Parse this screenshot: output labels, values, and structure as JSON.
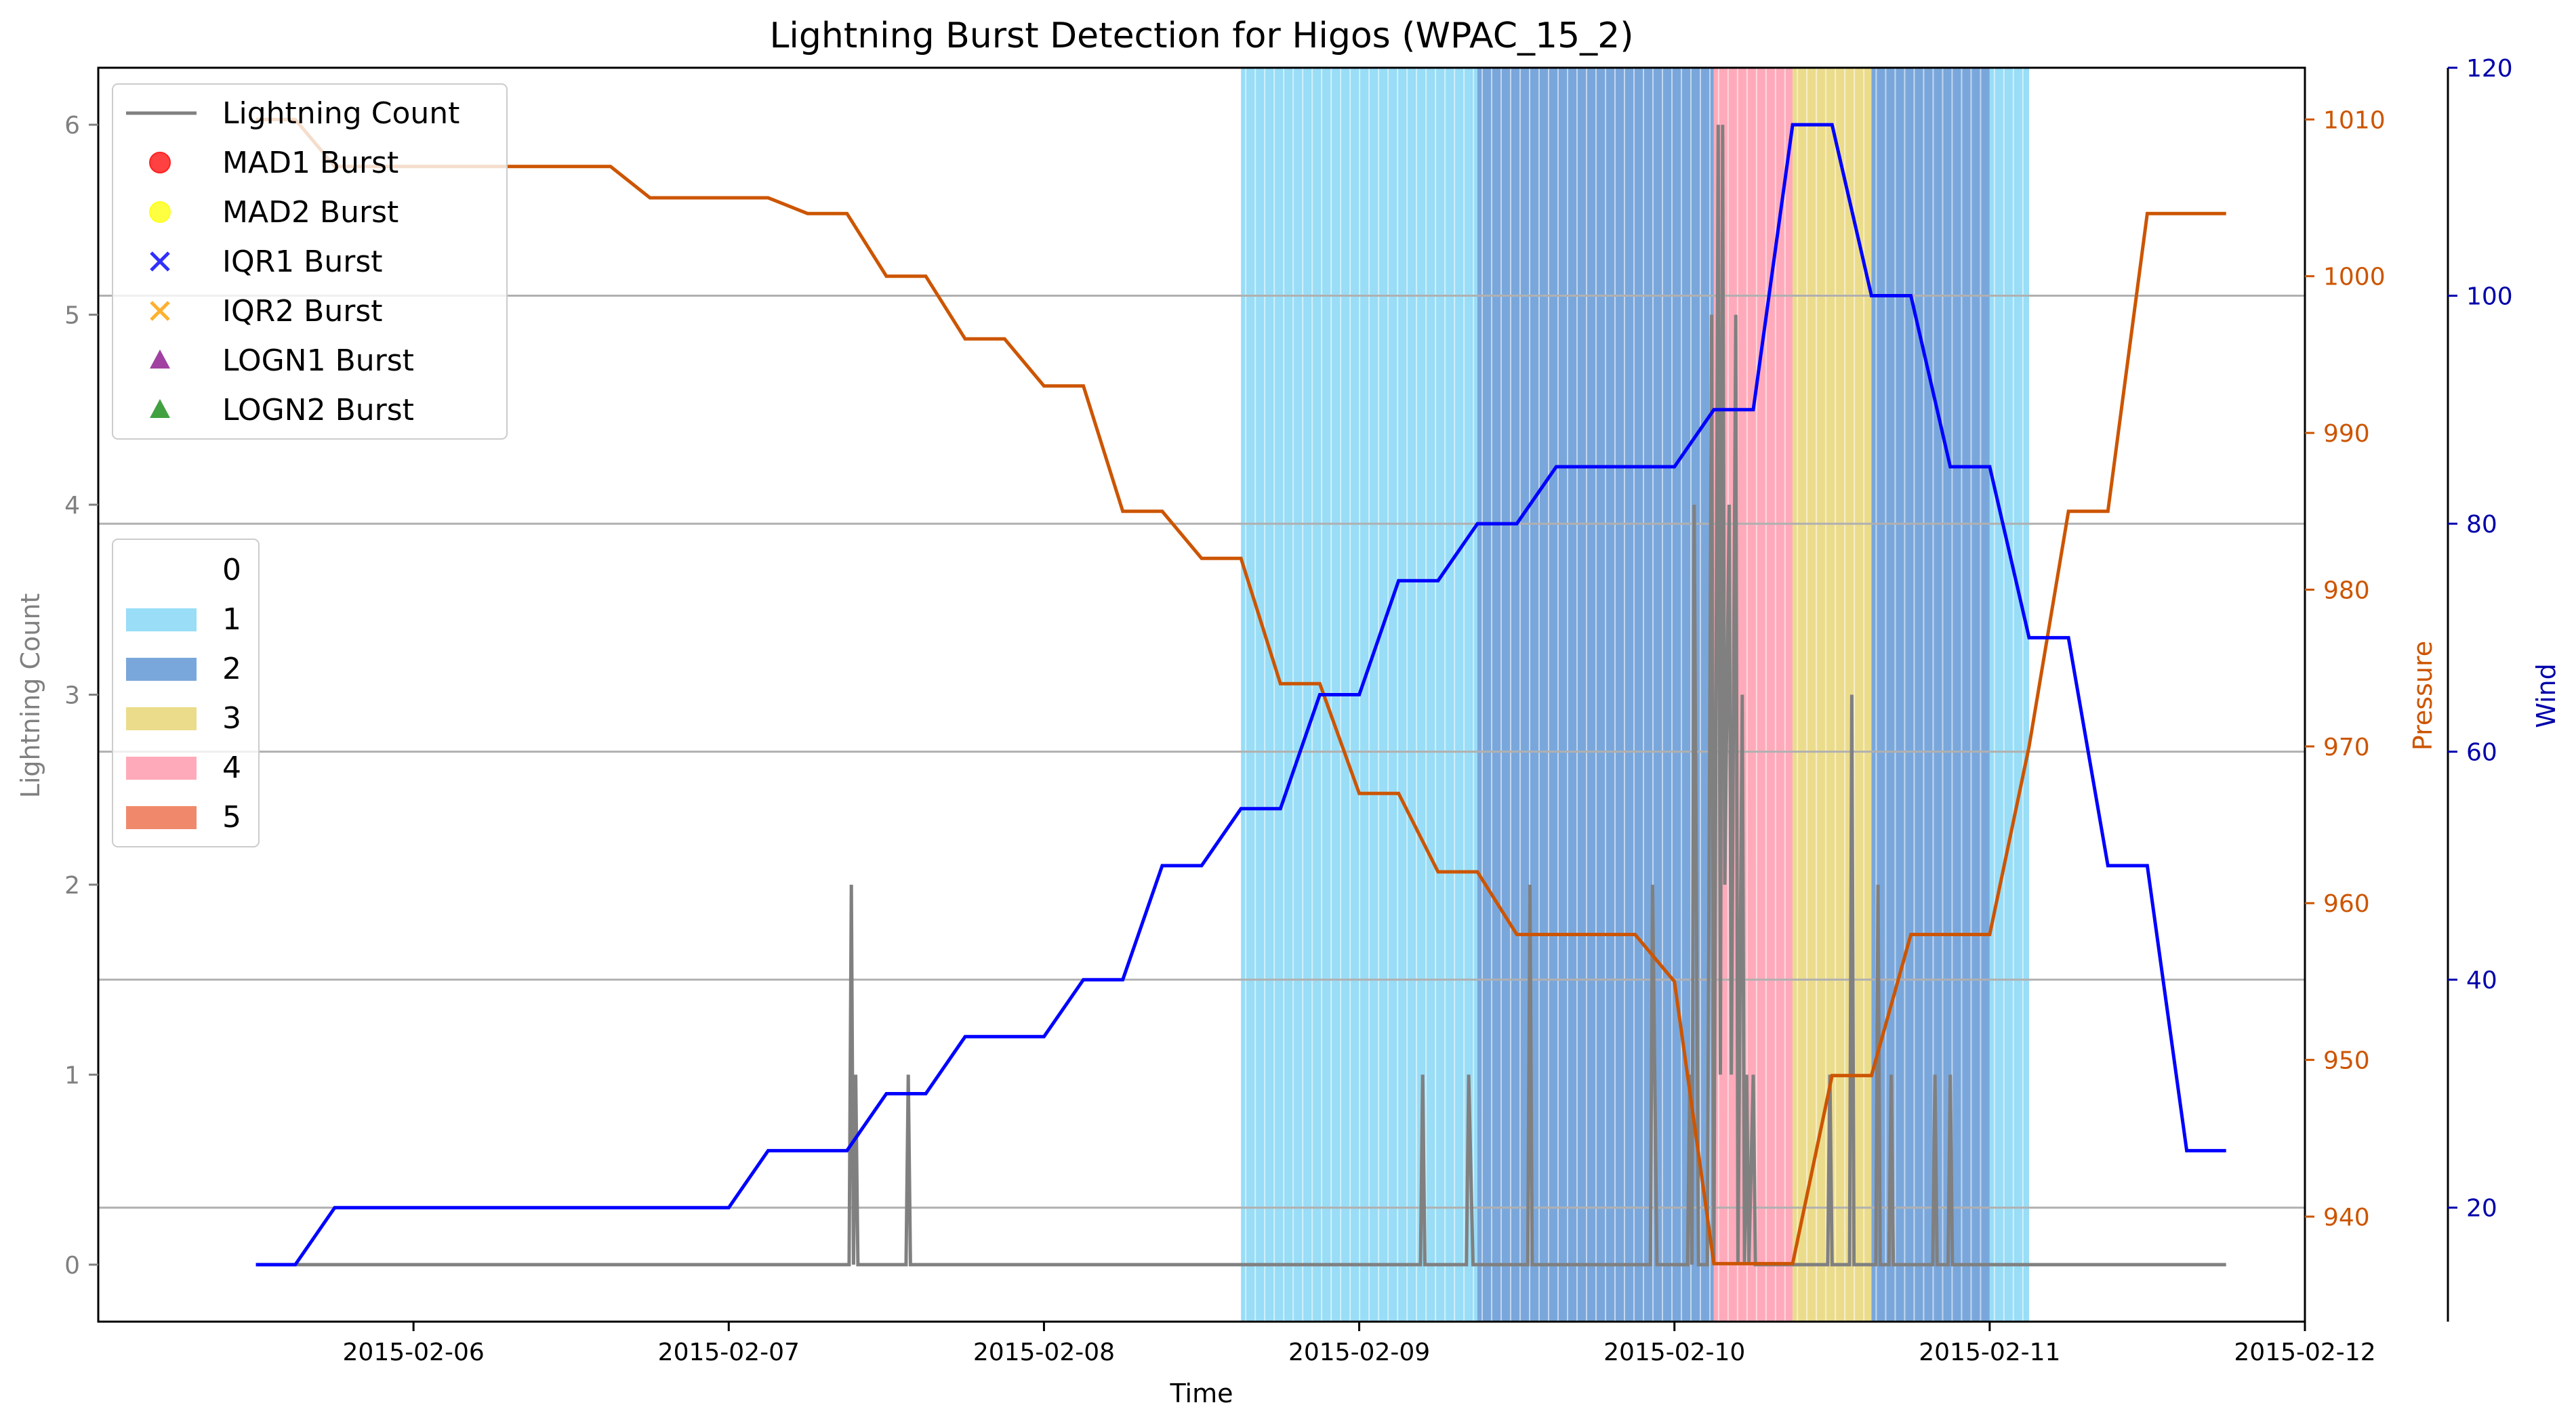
{
  "chart_data": {
    "type": "line",
    "title": "Lightning Burst Detection for Higos (WPAC_15_2)",
    "xlabel": "Time",
    "ylabel_left": "Lightning Count",
    "ylabel_pressure": "Pressure",
    "ylabel_wind": "Wind",
    "x_range": [
      "2015-02-05T00:00",
      "2015-02-12T00:00"
    ],
    "x_ticks": [
      "2015-02-06",
      "2015-02-07",
      "2015-02-08",
      "2015-02-09",
      "2015-02-10",
      "2015-02-11",
      "2015-02-12"
    ],
    "ylim_left": [
      -0.3,
      6.3
    ],
    "y_ticks_left": [
      "0",
      "1",
      "2",
      "3",
      "4",
      "5",
      "6"
    ],
    "ylim_pressure": [
      933.3,
      1013.3
    ],
    "y_ticks_pressure": [
      "940",
      "950",
      "960",
      "970",
      "980",
      "990",
      "1000",
      "1010"
    ],
    "ylim_wind": [
      10,
      120
    ],
    "y_ticks_wind": [
      "20",
      "40",
      "60",
      "80",
      "100",
      "120"
    ],
    "legend_series": [
      {
        "label": "Lightning Count",
        "marker": "line",
        "color": "#808080"
      },
      {
        "label": "MAD1 Burst",
        "marker": "circle",
        "color": "#ff2020"
      },
      {
        "label": "MAD2 Burst",
        "marker": "circle",
        "color": "#ffff20"
      },
      {
        "label": "IQR1 Burst",
        "marker": "x",
        "color": "#3030ff"
      },
      {
        "label": "IQR2 Burst",
        "marker": "x",
        "color": "#ffb030"
      },
      {
        "label": "LOGN1 Burst",
        "marker": "triangle",
        "color": "#902090"
      },
      {
        "label": "LOGN2 Burst",
        "marker": "triangle",
        "color": "#209020"
      }
    ],
    "category_legend": [
      {
        "label": "0",
        "color": "#ffffff"
      },
      {
        "label": "1",
        "color": "#99ddf7"
      },
      {
        "label": "2",
        "color": "#7aa7db"
      },
      {
        "label": "3",
        "color": "#ebdc8c"
      },
      {
        "label": "4",
        "color": "#ffaaba"
      },
      {
        "label": "5",
        "color": "#f0896c"
      }
    ],
    "category_spans": [
      {
        "category": 1,
        "start": "2015-02-08T15:00",
        "end": "2015-02-09T09:00"
      },
      {
        "category": 2,
        "start": "2015-02-09T09:00",
        "end": "2015-02-10T03:00"
      },
      {
        "category": 4,
        "start": "2015-02-10T03:00",
        "end": "2015-02-10T09:00"
      },
      {
        "category": 3,
        "start": "2015-02-10T09:00",
        "end": "2015-02-10T15:00"
      },
      {
        "category": 2,
        "start": "2015-02-10T15:00",
        "end": "2015-02-11T00:00"
      },
      {
        "category": 1,
        "start": "2015-02-11T00:00",
        "end": "2015-02-11T03:00"
      }
    ],
    "hgrid_wind_values": [
      20,
      40,
      60,
      80,
      100
    ],
    "series": [
      {
        "name": "Lightning Count",
        "color": "#808080",
        "points": [
          [
            "2015-02-05T12:00",
            0
          ],
          [
            "2015-02-07T09:10",
            0
          ],
          [
            "2015-02-07T09:20",
            2
          ],
          [
            "2015-02-07T09:30",
            0
          ],
          [
            "2015-02-07T09:40",
            1
          ],
          [
            "2015-02-07T09:50",
            0
          ],
          [
            "2015-02-07T13:30",
            0
          ],
          [
            "2015-02-07T13:40",
            1
          ],
          [
            "2015-02-07T13:50",
            0
          ],
          [
            "2015-02-09T04:40",
            0
          ],
          [
            "2015-02-09T04:50",
            1
          ],
          [
            "2015-02-09T05:00",
            0
          ],
          [
            "2015-02-09T08:10",
            0
          ],
          [
            "2015-02-09T08:20",
            1
          ],
          [
            "2015-02-09T08:40",
            0
          ],
          [
            "2015-02-09T12:50",
            0
          ],
          [
            "2015-02-09T13:00",
            2
          ],
          [
            "2015-02-09T13:10",
            0
          ],
          [
            "2015-02-09T22:10",
            0
          ],
          [
            "2015-02-09T22:20",
            2
          ],
          [
            "2015-02-09T22:40",
            0
          ],
          [
            "2015-02-10T01:00",
            0
          ],
          [
            "2015-02-10T01:10",
            1
          ],
          [
            "2015-02-10T01:20",
            0
          ],
          [
            "2015-02-10T01:30",
            4
          ],
          [
            "2015-02-10T01:50",
            0
          ],
          [
            "2015-02-10T02:30",
            0
          ],
          [
            "2015-02-10T02:50",
            5
          ],
          [
            "2015-02-10T03:00",
            0
          ],
          [
            "2015-02-10T03:20",
            6
          ],
          [
            "2015-02-10T03:30",
            1
          ],
          [
            "2015-02-10T03:40",
            6
          ],
          [
            "2015-02-10T03:50",
            2
          ],
          [
            "2015-02-10T04:10",
            4
          ],
          [
            "2015-02-10T04:20",
            1
          ],
          [
            "2015-02-10T04:40",
            5
          ],
          [
            "2015-02-10T04:50",
            0
          ],
          [
            "2015-02-10T05:10",
            3
          ],
          [
            "2015-02-10T05:20",
            0
          ],
          [
            "2015-02-10T05:30",
            1
          ],
          [
            "2015-02-10T05:40",
            0
          ],
          [
            "2015-02-10T06:00",
            1
          ],
          [
            "2015-02-10T06:10",
            0
          ],
          [
            "2015-02-10T11:40",
            0
          ],
          [
            "2015-02-10T11:50",
            1
          ],
          [
            "2015-02-10T12:00",
            0
          ],
          [
            "2015-02-10T13:20",
            0
          ],
          [
            "2015-02-10T13:30",
            3
          ],
          [
            "2015-02-10T13:40",
            0
          ],
          [
            "2015-02-10T15:20",
            0
          ],
          [
            "2015-02-10T15:30",
            2
          ],
          [
            "2015-02-10T15:40",
            0
          ],
          [
            "2015-02-10T16:20",
            0
          ],
          [
            "2015-02-10T16:30",
            1
          ],
          [
            "2015-02-10T16:40",
            0
          ],
          [
            "2015-02-10T19:40",
            0
          ],
          [
            "2015-02-10T19:50",
            1
          ],
          [
            "2015-02-10T20:00",
            0
          ],
          [
            "2015-02-10T20:50",
            0
          ],
          [
            "2015-02-10T21:00",
            1
          ],
          [
            "2015-02-10T21:10",
            0
          ],
          [
            "2015-02-11T18:00",
            0
          ]
        ]
      },
      {
        "name": "Pressure",
        "color": "#cc5500",
        "points": [
          [
            "2015-02-05T12:00",
            1010
          ],
          [
            "2015-02-05T15:00",
            1010
          ],
          [
            "2015-02-05T18:00",
            1007
          ],
          [
            "2015-02-06T15:00",
            1007
          ],
          [
            "2015-02-06T18:00",
            1005
          ],
          [
            "2015-02-07T03:00",
            1005
          ],
          [
            "2015-02-07T06:00",
            1004
          ],
          [
            "2015-02-07T09:00",
            1004
          ],
          [
            "2015-02-07T12:00",
            1000
          ],
          [
            "2015-02-07T15:00",
            1000
          ],
          [
            "2015-02-07T18:00",
            996
          ],
          [
            "2015-02-07T21:00",
            996
          ],
          [
            "2015-02-08T00:00",
            993
          ],
          [
            "2015-02-08T03:00",
            993
          ],
          [
            "2015-02-08T06:00",
            985
          ],
          [
            "2015-02-08T09:00",
            985
          ],
          [
            "2015-02-08T12:00",
            982
          ],
          [
            "2015-02-08T15:00",
            982
          ],
          [
            "2015-02-08T18:00",
            974
          ],
          [
            "2015-02-08T21:00",
            974
          ],
          [
            "2015-02-09T00:00",
            967
          ],
          [
            "2015-02-09T03:00",
            967
          ],
          [
            "2015-02-09T06:00",
            962
          ],
          [
            "2015-02-09T09:00",
            962
          ],
          [
            "2015-02-09T12:00",
            958
          ],
          [
            "2015-02-09T21:00",
            958
          ],
          [
            "2015-02-10T00:00",
            955
          ],
          [
            "2015-02-10T03:00",
            937
          ],
          [
            "2015-02-10T09:00",
            937
          ],
          [
            "2015-02-10T12:00",
            949
          ],
          [
            "2015-02-10T15:00",
            949
          ],
          [
            "2015-02-10T18:00",
            958
          ],
          [
            "2015-02-11T00:00",
            958
          ],
          [
            "2015-02-11T03:00",
            970
          ],
          [
            "2015-02-11T06:00",
            985
          ],
          [
            "2015-02-11T09:00",
            985
          ],
          [
            "2015-02-11T12:00",
            1004
          ],
          [
            "2015-02-11T18:00",
            1004
          ]
        ]
      },
      {
        "name": "Wind",
        "color": "#0000ff",
        "points": [
          [
            "2015-02-05T12:00",
            15
          ],
          [
            "2015-02-05T15:00",
            15
          ],
          [
            "2015-02-05T18:00",
            20
          ],
          [
            "2015-02-07T00:00",
            20
          ],
          [
            "2015-02-07T03:00",
            25
          ],
          [
            "2015-02-07T09:00",
            25
          ],
          [
            "2015-02-07T12:00",
            30
          ],
          [
            "2015-02-07T15:00",
            30
          ],
          [
            "2015-02-07T18:00",
            35
          ],
          [
            "2015-02-08T00:00",
            35
          ],
          [
            "2015-02-08T03:00",
            40
          ],
          [
            "2015-02-08T06:00",
            40
          ],
          [
            "2015-02-08T09:00",
            50
          ],
          [
            "2015-02-08T12:00",
            50
          ],
          [
            "2015-02-08T15:00",
            55
          ],
          [
            "2015-02-08T18:00",
            55
          ],
          [
            "2015-02-08T21:00",
            65
          ],
          [
            "2015-02-09T00:00",
            65
          ],
          [
            "2015-02-09T03:00",
            75
          ],
          [
            "2015-02-09T06:00",
            75
          ],
          [
            "2015-02-09T09:00",
            80
          ],
          [
            "2015-02-09T12:00",
            80
          ],
          [
            "2015-02-09T15:00",
            85
          ],
          [
            "2015-02-10T00:00",
            85
          ],
          [
            "2015-02-10T03:00",
            90
          ],
          [
            "2015-02-10T06:00",
            90
          ],
          [
            "2015-02-10T09:00",
            115
          ],
          [
            "2015-02-10T12:00",
            115
          ],
          [
            "2015-02-10T15:00",
            100
          ],
          [
            "2015-02-10T18:00",
            100
          ],
          [
            "2015-02-10T21:00",
            85
          ],
          [
            "2015-02-11T00:00",
            85
          ],
          [
            "2015-02-11T03:00",
            70
          ],
          [
            "2015-02-11T06:00",
            70
          ],
          [
            "2015-02-11T09:00",
            50
          ],
          [
            "2015-02-11T12:00",
            50
          ],
          [
            "2015-02-11T15:00",
            25
          ],
          [
            "2015-02-11T18:00",
            25
          ]
        ]
      }
    ]
  }
}
